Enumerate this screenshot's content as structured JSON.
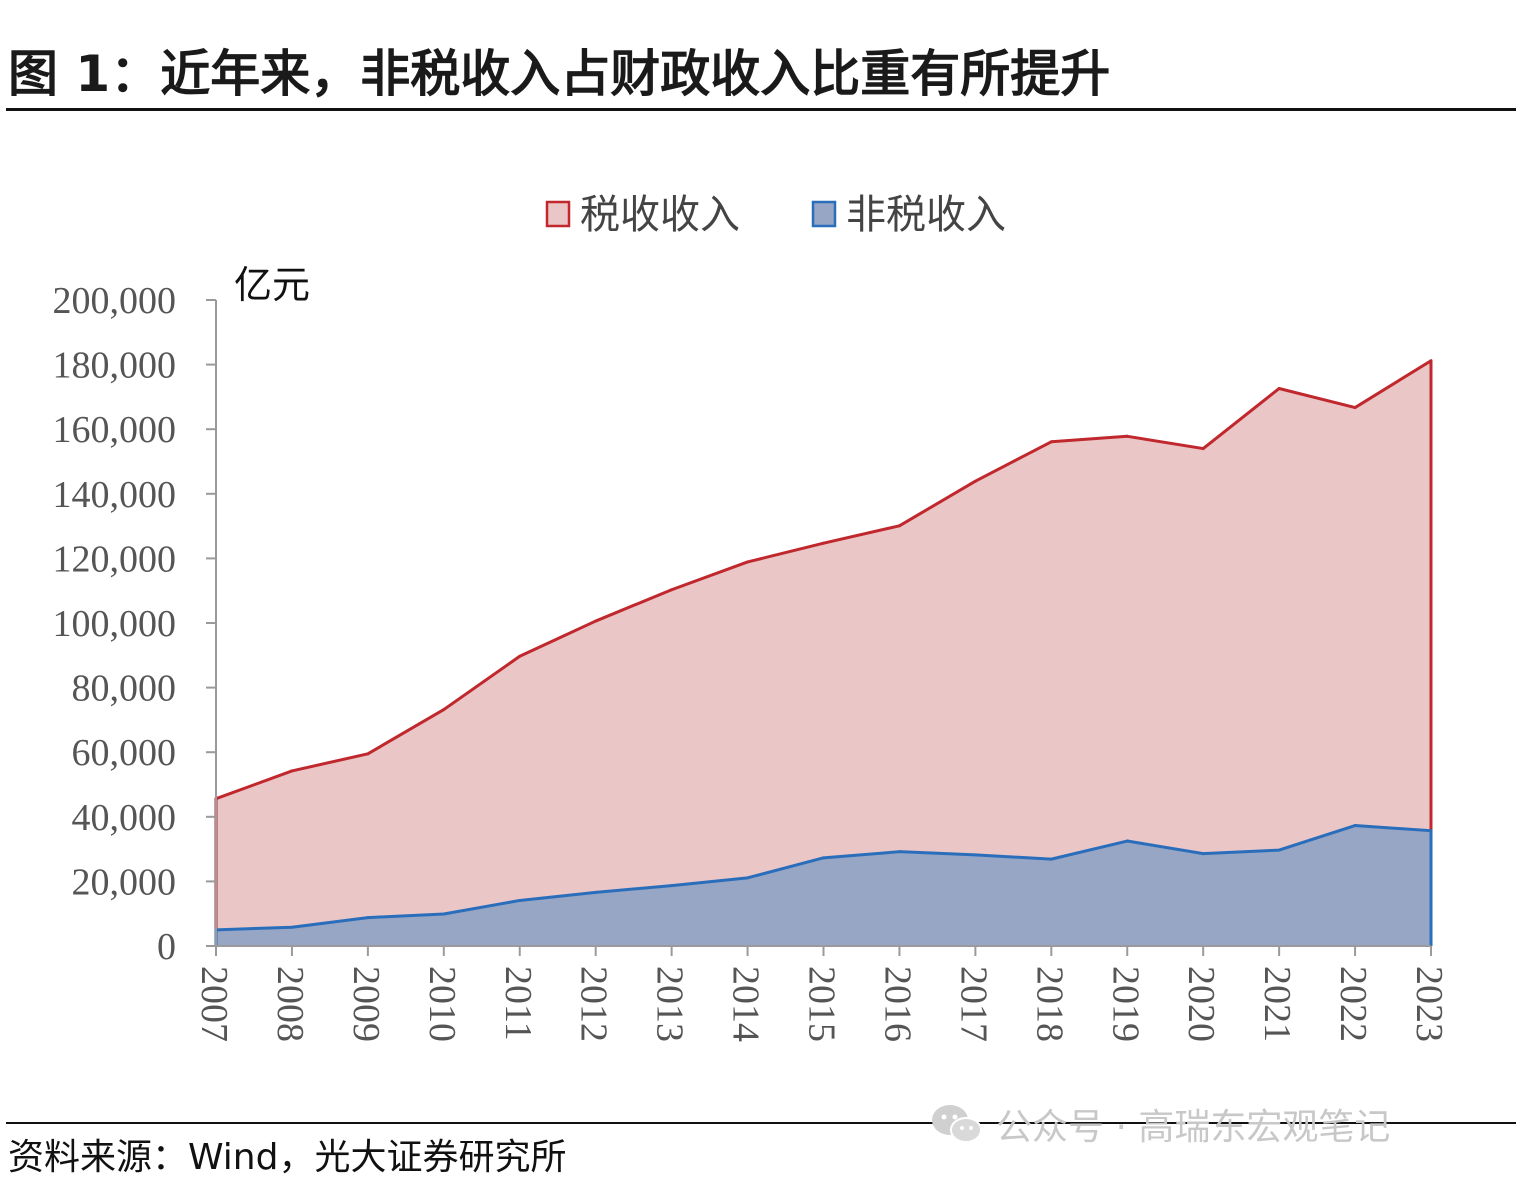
{
  "figure": {
    "title": "图 1：近年来，非税收入占财政收入比重有所提升",
    "source": "资料来源：Wind，光大证券研究所",
    "watermark": "公众号 · 高瑞东宏观笔记"
  },
  "chart_data": {
    "type": "area",
    "stacked": true,
    "x": [
      "2007",
      "2008",
      "2009",
      "2010",
      "2011",
      "2012",
      "2013",
      "2014",
      "2015",
      "2016",
      "2017",
      "2018",
      "2019",
      "2020",
      "2021",
      "2022",
      "2023"
    ],
    "unit_label": "亿元",
    "ylim": [
      0,
      200000
    ],
    "yticks": [
      0,
      20000,
      40000,
      60000,
      80000,
      100000,
      120000,
      140000,
      160000,
      180000,
      200000
    ],
    "ytick_labels": [
      "0",
      "20,000",
      "40,000",
      "60,000",
      "80,000",
      "100,000",
      "120,000",
      "140,000",
      "160,000",
      "180,000",
      "200,000"
    ],
    "legend_position": "top-center",
    "series": [
      {
        "name": "税收收入",
        "line_color": "#c0282d",
        "fill_color": "#eac6c7",
        "total_values": [
          45600,
          54200,
          59500,
          73200,
          89700,
          100600,
          110300,
          118900,
          124700,
          130100,
          143900,
          156100,
          157800,
          154000,
          172600,
          166700,
          181200
        ]
      },
      {
        "name": "非税收入",
        "line_color": "#2a6ebb",
        "fill_color": "#97a6c4",
        "values": [
          5000,
          5800,
          8800,
          9900,
          14100,
          16600,
          18700,
          21100,
          27300,
          29200,
          28200,
          26900,
          32500,
          28600,
          29700,
          37300,
          35700
        ]
      }
    ]
  }
}
